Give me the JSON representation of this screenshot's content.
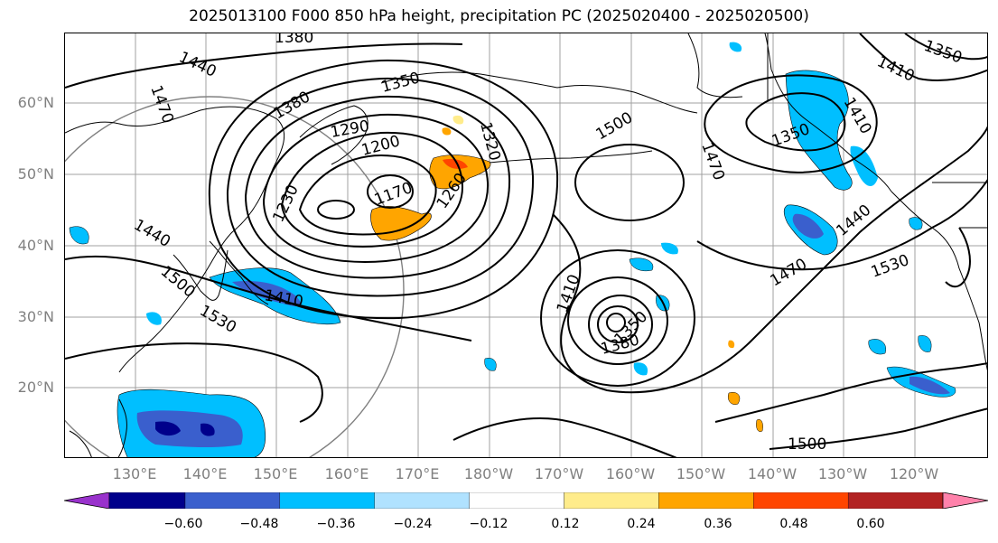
{
  "title": "2025013100 F000 850 hPa height, precipitation PC (2025020400 - 2025020500)",
  "latitude_labels": [
    "60°N",
    "50°N",
    "40°N",
    "30°N",
    "20°N"
  ],
  "longitude_labels": [
    "130°E",
    "140°E",
    "150°E",
    "160°E",
    "170°E",
    "180°W",
    "170°W",
    "160°W",
    "150°W",
    "140°W",
    "130°W",
    "120°W"
  ],
  "contour_labels": [
    "1380",
    "1440",
    "1470",
    "1350",
    "1380",
    "1290",
    "1200",
    "1320",
    "1500",
    "1470",
    "1410",
    "1410",
    "1350",
    "1230",
    "1170",
    "1260",
    "1440",
    "1440",
    "1470",
    "1530",
    "1500",
    "1410",
    "1530",
    "1410",
    "1350",
    "1380",
    "1500",
    "1350"
  ],
  "colorbar": {
    "ticks": [
      "−0.60",
      "−0.48",
      "−0.36",
      "−0.24",
      "−0.12",
      "0.12",
      "0.24",
      "0.36",
      "0.48",
      "0.60"
    ],
    "colors": [
      "#9932cc",
      "#00008b",
      "#3a5fcd",
      "#00bfff",
      "#b0e2ff",
      "#ffffff",
      "#ffec8b",
      "#ffa500",
      "#ff4500",
      "#b22222",
      "#ff82ab"
    ]
  }
}
